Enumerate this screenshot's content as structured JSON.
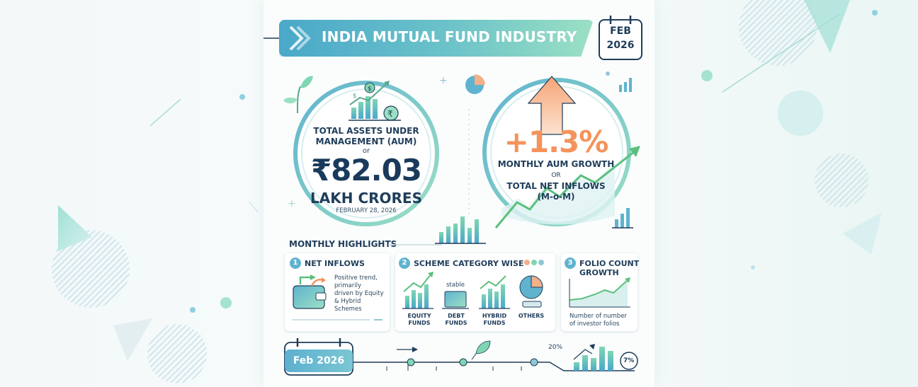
{
  "header": {
    "title": "INDIA MUTUAL FUND INDUSTRY"
  },
  "calendar": {
    "month": "FEB",
    "year": "2026"
  },
  "aum": {
    "label_line1": "TOTAL ASSETS UNDER",
    "label_line2": "MANAGEMENT (AUM)",
    "or_text": "or",
    "value": "₹82.03",
    "unit": "LAKH CRORES",
    "date": "FEBRUARY 28, 2026"
  },
  "growth": {
    "value": "+1.3%",
    "label": "MONTHLY AUM GROWTH",
    "or_text": "OR",
    "sub_line1": "TOTAL NET INFLOWS",
    "sub_line2": "(M-o-M)"
  },
  "highlights": {
    "title": "MONTHLY HIGHLIGHTS",
    "net_inflows": {
      "number": "1",
      "title": "NET INFLOWS",
      "desc": [
        "Positive trend,",
        "primarily",
        "driven by Equity",
        "& Hybrid",
        "Schemes"
      ]
    },
    "scheme_category": {
      "number": "2",
      "title": "SCHEME CATEGORY WISE",
      "stable_label": "stable",
      "categories": [
        {
          "line1": "EQUITY",
          "line2": "FUNDS"
        },
        {
          "line1": "DEBT",
          "line2": "FUNDS"
        },
        {
          "line1": "HYBRID",
          "line2": "FUNDS"
        },
        {
          "line1": "OTHERS",
          "line2": ""
        }
      ]
    },
    "folio": {
      "number": "3",
      "title_line1": "FOLIO COUNT",
      "title_line2": "GROWTH",
      "desc_line1": "Number of number",
      "desc_line2": "of investor folios"
    }
  },
  "timeline": {
    "label": "Feb 2026",
    "pct_a": "20%",
    "pct_b": "7%"
  },
  "colors": {
    "navy": "#1f3d5a",
    "teal": "#5fb3cf",
    "mint": "#7fd6b3",
    "orange": "#f4935b"
  }
}
